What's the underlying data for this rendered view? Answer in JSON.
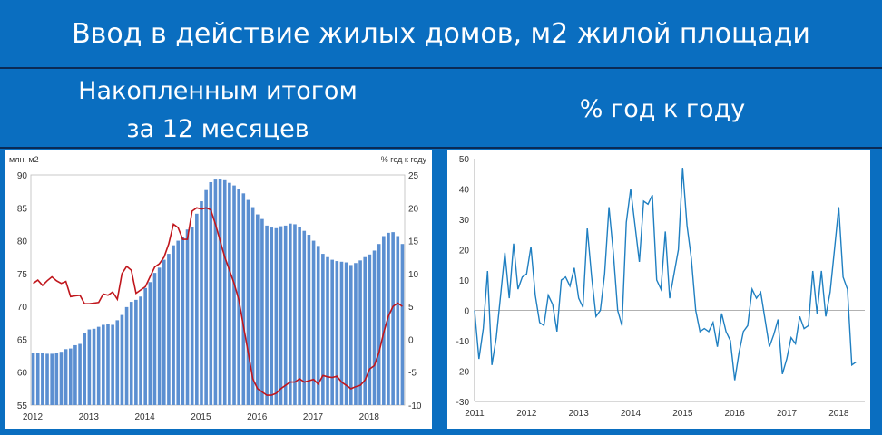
{
  "title": "Ввод в действие жилых домов, м2 жилой площади",
  "subtitles": {
    "left_line1": "Накопленным итогом",
    "left_line2": "за 12 месяцев",
    "right": "% год к году"
  },
  "colors": {
    "background": "#0a6ec0",
    "bar": "#5b8fd1",
    "line_red": "#c0161c",
    "line_blue": "#1f7fc1"
  },
  "chart_data": [
    {
      "type": "bar",
      "left_axis_label": "млн. м2",
      "right_axis_label": "% год к году",
      "ylim_left": [
        55,
        90
      ],
      "ylim_right": [
        -10,
        25
      ],
      "yticks_left": [
        55,
        60,
        65,
        70,
        75,
        80,
        85,
        90
      ],
      "yticks_right": [
        -10,
        -5,
        0,
        5,
        10,
        15,
        20,
        25
      ],
      "x_labels": [
        "2012",
        "2013",
        "2014",
        "2015",
        "2016",
        "2017",
        "2018"
      ],
      "months_start": "2012-01",
      "series": [
        {
          "axis": "left",
          "values": [
            62.9,
            62.9,
            62.9,
            62.8,
            62.8,
            62.9,
            63.1,
            63.5,
            63.6,
            64.1,
            64.3,
            65.9,
            66.5,
            66.6,
            66.9,
            67.2,
            67.3,
            67.2,
            67.9,
            68.7,
            69.9,
            70.7,
            71.0,
            71.5,
            72.8,
            73.7,
            75.1,
            75.9,
            77.1,
            78.0,
            79.3,
            80.0,
            80.6,
            81.7,
            82.1,
            84.1,
            86.0,
            87.7,
            88.9,
            89.3,
            89.4,
            89.2,
            88.8,
            88.4,
            87.8,
            87.2,
            86.2,
            85.1,
            84.0,
            83.3,
            82.3,
            82.0,
            81.9,
            82.2,
            82.3,
            82.6,
            82.5,
            82.1,
            81.5,
            80.9,
            80.0,
            79.2,
            78.0,
            77.5,
            77.1,
            76.9,
            76.8,
            76.7,
            76.3,
            76.6,
            77.0,
            77.5,
            77.9,
            78.5,
            79.5,
            80.7,
            81.2,
            81.3,
            80.7,
            79.5
          ]
        },
        {
          "axis": "right",
          "values": [
            8.5,
            9.0,
            8.2,
            8.9,
            9.5,
            8.9,
            8.5,
            8.8,
            6.5,
            6.6,
            6.7,
            5.4,
            5.4,
            5.5,
            5.6,
            6.9,
            6.7,
            7.2,
            6.1,
            10.0,
            11.1,
            10.5,
            7.0,
            7.5,
            8.0,
            9.5,
            11.0,
            11.5,
            12.5,
            14.5,
            17.5,
            17.0,
            15.2,
            15.2,
            19.5,
            20.0,
            19.8,
            20.0,
            19.7,
            17.5,
            15.0,
            12.5,
            10.5,
            8.5,
            6.0,
            2.0,
            -2.0,
            -6.0,
            -7.5,
            -8.0,
            -8.5,
            -8.5,
            -8.2,
            -7.5,
            -7.0,
            -6.5,
            -6.5,
            -6.0,
            -6.5,
            -6.3,
            -6.1,
            -6.8,
            -5.5,
            -5.7,
            -5.8,
            -5.6,
            -6.5,
            -7.0,
            -7.5,
            -7.2,
            -7.0,
            -6.2,
            -4.5,
            -4.0,
            -2.0,
            1.0,
            3.5,
            5.0,
            5.5,
            5.0
          ]
        }
      ]
    },
    {
      "type": "line",
      "ylim": [
        -30,
        50
      ],
      "yticks": [
        -30,
        -20,
        -10,
        0,
        10,
        20,
        30,
        40,
        50
      ],
      "x_labels": [
        "2011",
        "2012",
        "2013",
        "2014",
        "2015",
        "2016",
        "2017",
        "2018"
      ],
      "months_start": "2011-01",
      "series": [
        {
          "values": [
            0,
            -16,
            -6,
            13,
            -18,
            -9,
            5,
            19,
            4,
            22,
            7,
            11,
            12,
            21,
            5,
            -4,
            -5,
            5,
            2,
            -7,
            10,
            11,
            8,
            14,
            4,
            1,
            27,
            11,
            -2,
            0,
            12,
            34,
            19,
            0,
            -5,
            29,
            40,
            28,
            16,
            36,
            35,
            38,
            10,
            7,
            26,
            4,
            12,
            20,
            47,
            28,
            17,
            0,
            -7,
            -6,
            -7,
            -4,
            -12,
            -1,
            -7,
            -10,
            -23,
            -14,
            -7,
            -5,
            7,
            4,
            6,
            -3,
            -12,
            -8,
            -3,
            -21,
            -16,
            -9,
            -11,
            -2,
            -6,
            -5,
            13,
            -1,
            13,
            -2,
            6,
            20,
            34,
            11,
            7,
            -18,
            -17
          ]
        }
      ]
    }
  ]
}
